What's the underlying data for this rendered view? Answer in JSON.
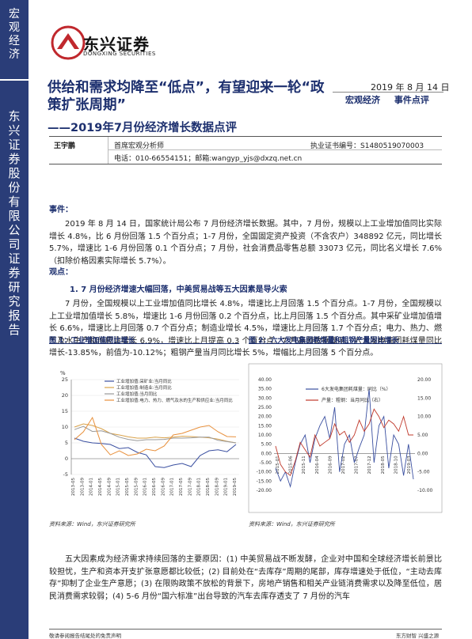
{
  "sidebar": {
    "top_label": "宏观经济",
    "main_label": "东兴证券股份有限公司证券研究报告"
  },
  "logo": {
    "cn": "东兴证券",
    "en": "DONGXING SECURITIES"
  },
  "report": {
    "title": "供给和需求均降至“低点”，有望迎来一轮“政策扩张周期”",
    "subtitle": "——2019年7月份经济增长数据点评",
    "date": "2019 年 8 月 14 日",
    "tags": [
      "宏观经济",
      "事件点评"
    ]
  },
  "author": {
    "name": "王宇鹏",
    "role": "首席宏观分析师",
    "cert": "执业证书编号：S1480519070003",
    "contact": "电话：010-66554151；邮箱:wangyp_yjs@dxzq.net.cn"
  },
  "sections": {
    "event_head": "事件：",
    "event_text": "2019 年 8 月 14 日，国家统计局公布 7 月份经济增长数据。其中，7 月份，规模以上工业增加值同比实际增长 4.8%，比 6 月份回落 1.5 个百分点；1-7 月份，全国固定资产投资（不含农户）348892 亿元，同比增长 5.7%，增速比 1-6 月份回落 0.1 个百分点；7 月份，社会消费品零售总额 33073 亿元，同比名义增长 7.6%（扣除价格因素实际增长 5.7%）。",
    "view_head": "观点：",
    "point1_head": "1. 7 月份经济增速大幅回落，中美贸易战等五大因素是导火索",
    "point1_text": "7 月份，全国规模以上工业增加值同比增长 4.8%，增速比上月回落 1.5 个百分点。1-7 月份，全国规模以上工业增加值增长 5.8%，增速比 1-6 月份回落 0.2 个百分点，比上月回落 1.5 个百分点。其中采矿业增加值增长 6.6%，增速比上月回落 0.7 个百分点；制造业增长 4.5%，增速比上月回落 1.7 个百分点；电力、热力、燃气及水生产和供应业增长 6.9%，增速比上月提高 0.3 个百分点。7 月高频数据显示，六大发电集团耗煤量同比增长-13.85%，前值为-10.12%；粗钢产量当月同比增长 5%，增幅比上月回落 5 个百分点。",
    "bottom_text": "五大因素成为经济需求持续回落的主要原因：(1) 中美贸易战不断发酵，企业对中国和全球经济增长前景比较担忧，生产和资本开支扩张意愿都比较低；(2) 目前处在“去库存”周期的尾部，库存增速处于低位，“主动去库存”抑制了企业生产意愿；(3) 在限购政策不放松的背景下，房地产销售和相关产业链消费需求以及降至低位，居民消费需求较弱；(4) 5-6 月份“国六标准”出台导致的汽车去库存透支了 7 月份的汽车"
  },
  "figures": {
    "fig1_title": "图 1：工业增加值同比增长",
    "fig2_title": "图 2：六大发电集团耗煤量和粗钢产量同比增长",
    "source1": "资料来源：Wind，东兴证券研究所",
    "source2": "资料来源：Wind，东兴证券研究所"
  },
  "footer": {
    "left": "敬请参阅报告结尾处的免责声明",
    "right": "东方财智  兴盛之源"
  },
  "chart_data": [
    {
      "type": "line",
      "title": "",
      "ylabel": "%",
      "ylim": [
        -5,
        25
      ],
      "yticks": [
        "25",
        "20",
        "15",
        "10",
        "5",
        "0",
        "-5"
      ],
      "x": [
        "2013-05",
        "2013-09",
        "2014-01",
        "2014-05",
        "2014-09",
        "2015-01",
        "2015-05",
        "2015-09",
        "2016-01",
        "2016-05",
        "2016-09",
        "2017-01",
        "2017-05",
        "2017-09",
        "2018-01",
        "2018-05",
        "2018-09",
        "2019-01",
        "2019-05"
      ],
      "x_labels": [
        "2013-05",
        "2013-09",
        "2014-01",
        "2014-05",
        "2014-09",
        "2015-01",
        "2015-05",
        "2015-09",
        "2016-01",
        "2016-05",
        "2016-09",
        "2017-01",
        "2017-05",
        "2017-09",
        "2018-01",
        "2018-05",
        "2018-09",
        "2019-01",
        "2019-05"
      ],
      "series": [
        {
          "name": "工业增加值:采矿业:当月同比",
          "color": "#3a4fa0",
          "values": [
            6.5,
            5.5,
            5.0,
            4.8,
            4.5,
            3.2,
            3.5,
            2.0,
            1.2,
            -2.5,
            -2.8,
            -2.0,
            -1.5,
            -2.5,
            1.0,
            2.5,
            2.8,
            2.2,
            4.5
          ]
        },
        {
          "name": "工业增加值:制造业:当月同比",
          "color": "#d9a24a",
          "values": [
            10.0,
            11.0,
            10.5,
            9.5,
            8.0,
            7.5,
            6.9,
            6.5,
            6.5,
            6.8,
            6.6,
            6.8,
            7.1,
            7.0,
            6.8,
            6.6,
            6.2,
            5.5,
            5.0
          ]
        },
        {
          "name": "工业增加值:当月同比",
          "color": "#999999",
          "values": [
            9.2,
            10.2,
            8.6,
            8.8,
            8.0,
            6.8,
            6.1,
            5.7,
            6.0,
            6.0,
            6.1,
            6.5,
            6.5,
            6.6,
            6.8,
            6.8,
            5.8,
            5.4,
            5.0
          ]
        },
        {
          "name": "工业增加值:电力、热力、燃气及水的生产和供应业:当月同比",
          "color": "#e8903c",
          "values": [
            6.0,
            8.5,
            13.0,
            4.5,
            1.2,
            2.5,
            1.0,
            1.5,
            3.0,
            2.5,
            4.0,
            7.5,
            8.0,
            9.0,
            10.0,
            10.5,
            8.5,
            7.0,
            6.9
          ]
        }
      ]
    },
    {
      "type": "line",
      "title": "",
      "ylim_left": [
        -20,
        40
      ],
      "yticks_left": [
        "40.00",
        "35.00",
        "30.00",
        "25.00",
        "20.00",
        "15.00",
        "10.00",
        "5.00",
        "0.00",
        "-5.00",
        "-10.00",
        "-15.00",
        "-20.00"
      ],
      "ylim_right": [
        -10,
        20
      ],
      "yticks_right": [
        "20.00",
        "15.00",
        "10.00",
        "5.00",
        "0.00",
        "-5.00",
        "-10.00"
      ],
      "x_labels": [
        "2015-01",
        "2015-06",
        "2015-11",
        "2016-04",
        "2016-09",
        "2017-02",
        "2017-07",
        "2017-12",
        "2018-05",
        "2018-10",
        "2019-03"
      ],
      "series": [
        {
          "name": "6大发电集团耗煤量：同比（%）",
          "color": "#3a4fa0",
          "axis": "left",
          "values": [
            -8,
            -15,
            -10,
            -18,
            -5,
            5,
            10,
            -5,
            8,
            15,
            20,
            8,
            25,
            -10,
            5,
            10,
            -5,
            3,
            10,
            35,
            -5,
            15,
            20,
            -8,
            10,
            5,
            -12,
            5,
            -14
          ]
        },
        {
          "name": "产量：粗钢：当月同比（右）",
          "color": "#c0392b",
          "axis": "right",
          "values": [
            2,
            -3,
            -5,
            -6,
            -2,
            3,
            1,
            -1,
            5,
            2,
            3,
            4,
            8,
            5,
            6,
            3,
            5,
            9,
            6,
            8,
            12,
            10,
            7,
            9,
            8,
            6,
            10,
            5,
            5
          ]
        }
      ]
    }
  ]
}
